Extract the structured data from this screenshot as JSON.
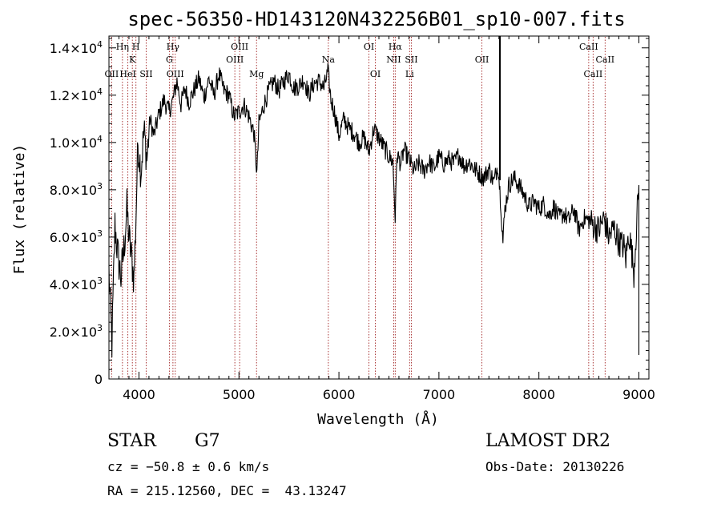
{
  "chart_data": {
    "type": "line",
    "title": "spec-56350-HD143120N432256B01_sp10-007.fits",
    "xlabel": "Wavelength (Å)",
    "ylabel": "Flux (relative)",
    "xlim": [
      3700,
      9100
    ],
    "ylim": [
      0,
      14500
    ],
    "x_ticks": [
      4000,
      5000,
      6000,
      7000,
      8000,
      9000
    ],
    "y_ticks": [
      {
        "value": 0,
        "mant": "0",
        "exp": ""
      },
      {
        "value": 2000,
        "mant": "2.0×10",
        "exp": "3"
      },
      {
        "value": 4000,
        "mant": "4.0×10",
        "exp": "3"
      },
      {
        "value": 6000,
        "mant": "6.0×10",
        "exp": "3"
      },
      {
        "value": 8000,
        "mant": "8.0×10",
        "exp": "3"
      },
      {
        "value": 10000,
        "mant": "1.0×10",
        "exp": "4"
      },
      {
        "value": 12000,
        "mant": "1.2×10",
        "exp": "4"
      },
      {
        "value": 14000,
        "mant": "1.4×10",
        "exp": "4"
      }
    ],
    "series": [
      {
        "x": [
          3700,
          3730,
          3760,
          3790,
          3820,
          3850,
          3880,
          3900,
          3930,
          3950,
          3970,
          3990,
          4020,
          4050,
          4080,
          4110,
          4150,
          4200,
          4250,
          4300,
          4340,
          4380,
          4420,
          4460,
          4500,
          4550,
          4600,
          4650,
          4700,
          4750,
          4800,
          4850,
          4900,
          4950,
          5000,
          5050,
          5100,
          5150,
          5180,
          5200,
          5250,
          5300,
          5350,
          5400,
          5450,
          5500,
          5550,
          5600,
          5650,
          5700,
          5750,
          5800,
          5850,
          5890,
          5920,
          5950,
          6000,
          6050,
          6100,
          6150,
          6200,
          6250,
          6300,
          6350,
          6400,
          6450,
          6500,
          6540,
          6563,
          6580,
          6620,
          6650,
          6700,
          6750,
          6800,
          6850,
          6900,
          6950,
          7000,
          7050,
          7100,
          7150,
          7200,
          7250,
          7300,
          7350,
          7400,
          7450,
          7500,
          7550,
          7590,
          7620,
          7640,
          7660,
          7700,
          7750,
          7800,
          7850,
          7900,
          7950,
          8000,
          8050,
          8100,
          8150,
          8200,
          8250,
          8300,
          8350,
          8400,
          8450,
          8500,
          8550,
          8600,
          8650,
          8700,
          8750,
          8800,
          8850,
          8870,
          8900,
          8930,
          8950,
          8980,
          9000
        ],
        "y": [
          4500,
          1500,
          6500,
          5200,
          4300,
          5500,
          7200,
          6000,
          5000,
          4200,
          6800,
          10000,
          8800,
          10500,
          9300,
          11000,
          10300,
          11200,
          11800,
          11300,
          11800,
          12600,
          11600,
          12300,
          11700,
          12200,
          12700,
          11900,
          12700,
          12000,
          12900,
          12200,
          12000,
          11100,
          11300,
          11600,
          11100,
          10400,
          8700,
          10800,
          11600,
          12200,
          12600,
          12200,
          12600,
          12900,
          12300,
          12400,
          12700,
          12000,
          12500,
          12600,
          12300,
          13000,
          11800,
          11400,
          10300,
          11000,
          10600,
          10400,
          10000,
          10200,
          9600,
          10600,
          10200,
          9800,
          9400,
          9200,
          6800,
          9500,
          9100,
          9700,
          9300,
          8800,
          9100,
          8800,
          9200,
          8900,
          9400,
          9100,
          9300,
          9100,
          9500,
          9000,
          9200,
          8900,
          8700,
          8500,
          8900,
          8300,
          9100,
          7400,
          5800,
          7200,
          8200,
          8500,
          8200,
          7800,
          7300,
          7500,
          7200,
          7400,
          6900,
          7300,
          6800,
          7000,
          6700,
          7200,
          6300,
          6800,
          6700,
          6500,
          6300,
          6800,
          6000,
          6400,
          5800,
          5600,
          5100,
          6200,
          5300,
          4500,
          6800,
          8200
        ]
      }
    ],
    "lines": [
      {
        "x": 3727,
        "label": "OII",
        "row": 3
      },
      {
        "x": 3835,
        "label": "Hη",
        "row": 1
      },
      {
        "x": 3889,
        "label": "HeI",
        "row": 3
      },
      {
        "x": 3934,
        "label": "K",
        "row": 2
      },
      {
        "x": 3970,
        "label": "H",
        "row": 1
      },
      {
        "x": 4072,
        "label": "SII",
        "row": 3
      },
      {
        "x": 4304,
        "label": "G",
        "row": 2
      },
      {
        "x": 4340,
        "label": "Hγ",
        "row": 1
      },
      {
        "x": 4363,
        "label": "OIII",
        "row": 3
      },
      {
        "x": 4959,
        "label": "OIII",
        "row": 2
      },
      {
        "x": 5007,
        "label": "OIII",
        "row": 1
      },
      {
        "x": 5176,
        "label": "Mg",
        "row": 3
      },
      {
        "x": 5894,
        "label": "Na",
        "row": 2
      },
      {
        "x": 6300,
        "label": "OI",
        "row": 1
      },
      {
        "x": 6364,
        "label": "OI",
        "row": 3
      },
      {
        "x": 6548,
        "label": "NII",
        "row": 2
      },
      {
        "x": 6563,
        "label": "Hα",
        "row": 1
      },
      {
        "x": 6707,
        "label": "Li",
        "row": 3
      },
      {
        "x": 6724,
        "label": "SII",
        "row": 2
      },
      {
        "x": 7430,
        "label": "OII",
        "row": 2
      },
      {
        "x": 8498,
        "label": "CaII",
        "row": 1
      },
      {
        "x": 8542,
        "label": "CaII",
        "row": 3
      },
      {
        "x": 8662,
        "label": "CaII",
        "row": 2
      }
    ],
    "marker_line": {
      "x": 7610
    },
    "grid": false,
    "legend": "none"
  },
  "info": {
    "class": "STAR",
    "subclass": "G7",
    "survey": "LAMOST DR2",
    "cz": "cz = −50.8 ± 0.6 km/s",
    "obs_date": "Obs-Date: 20130226",
    "radec": "RA = 215.12560, DEC =  43.13247"
  }
}
